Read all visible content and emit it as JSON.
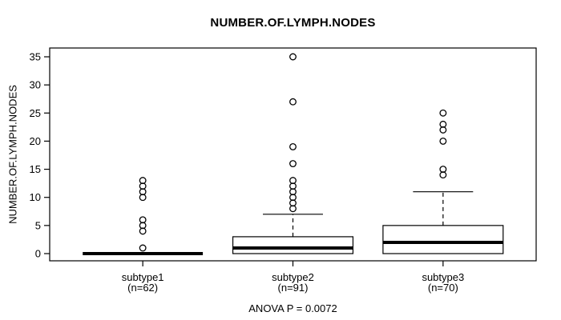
{
  "figure": {
    "background": "#ffffff",
    "stroke_color": "#000000"
  },
  "chart_data": {
    "type": "boxplot",
    "title": "NUMBER.OF.LYMPH.NODES",
    "ylabel": "NUMBER.OF.LYMPH.NODES",
    "xlabel": "",
    "annotation": "ANOVA P = 0.0072",
    "ylim": [
      0,
      35
    ],
    "yticks": [
      0,
      5,
      10,
      15,
      20,
      25,
      30,
      35
    ],
    "grid": false,
    "legend": "none",
    "groups": [
      {
        "label": "subtype1",
        "sublabel": "(n=62)",
        "n": 62,
        "q1": 0,
        "median": 0,
        "q3": 0,
        "whisker_low": 0,
        "whisker_high": 0,
        "outliers": [
          1,
          4,
          5,
          6,
          10,
          11,
          12,
          13
        ]
      },
      {
        "label": "subtype2",
        "sublabel": "(n=91)",
        "n": 91,
        "q1": 0,
        "median": 1,
        "q3": 3,
        "whisker_low": 0,
        "whisker_high": 7,
        "outliers": [
          8,
          9,
          10,
          11,
          12,
          13,
          16,
          19,
          27,
          35
        ]
      },
      {
        "label": "subtype3",
        "sublabel": "(n=70)",
        "n": 70,
        "q1": 0,
        "median": 2,
        "q3": 5,
        "whisker_low": 0,
        "whisker_high": 11,
        "outliers": [
          14,
          15,
          20,
          22,
          23,
          25
        ]
      }
    ],
    "colors": {
      "box_fill": "#ffffff",
      "stroke": "#000000",
      "background": "#ffffff"
    }
  }
}
